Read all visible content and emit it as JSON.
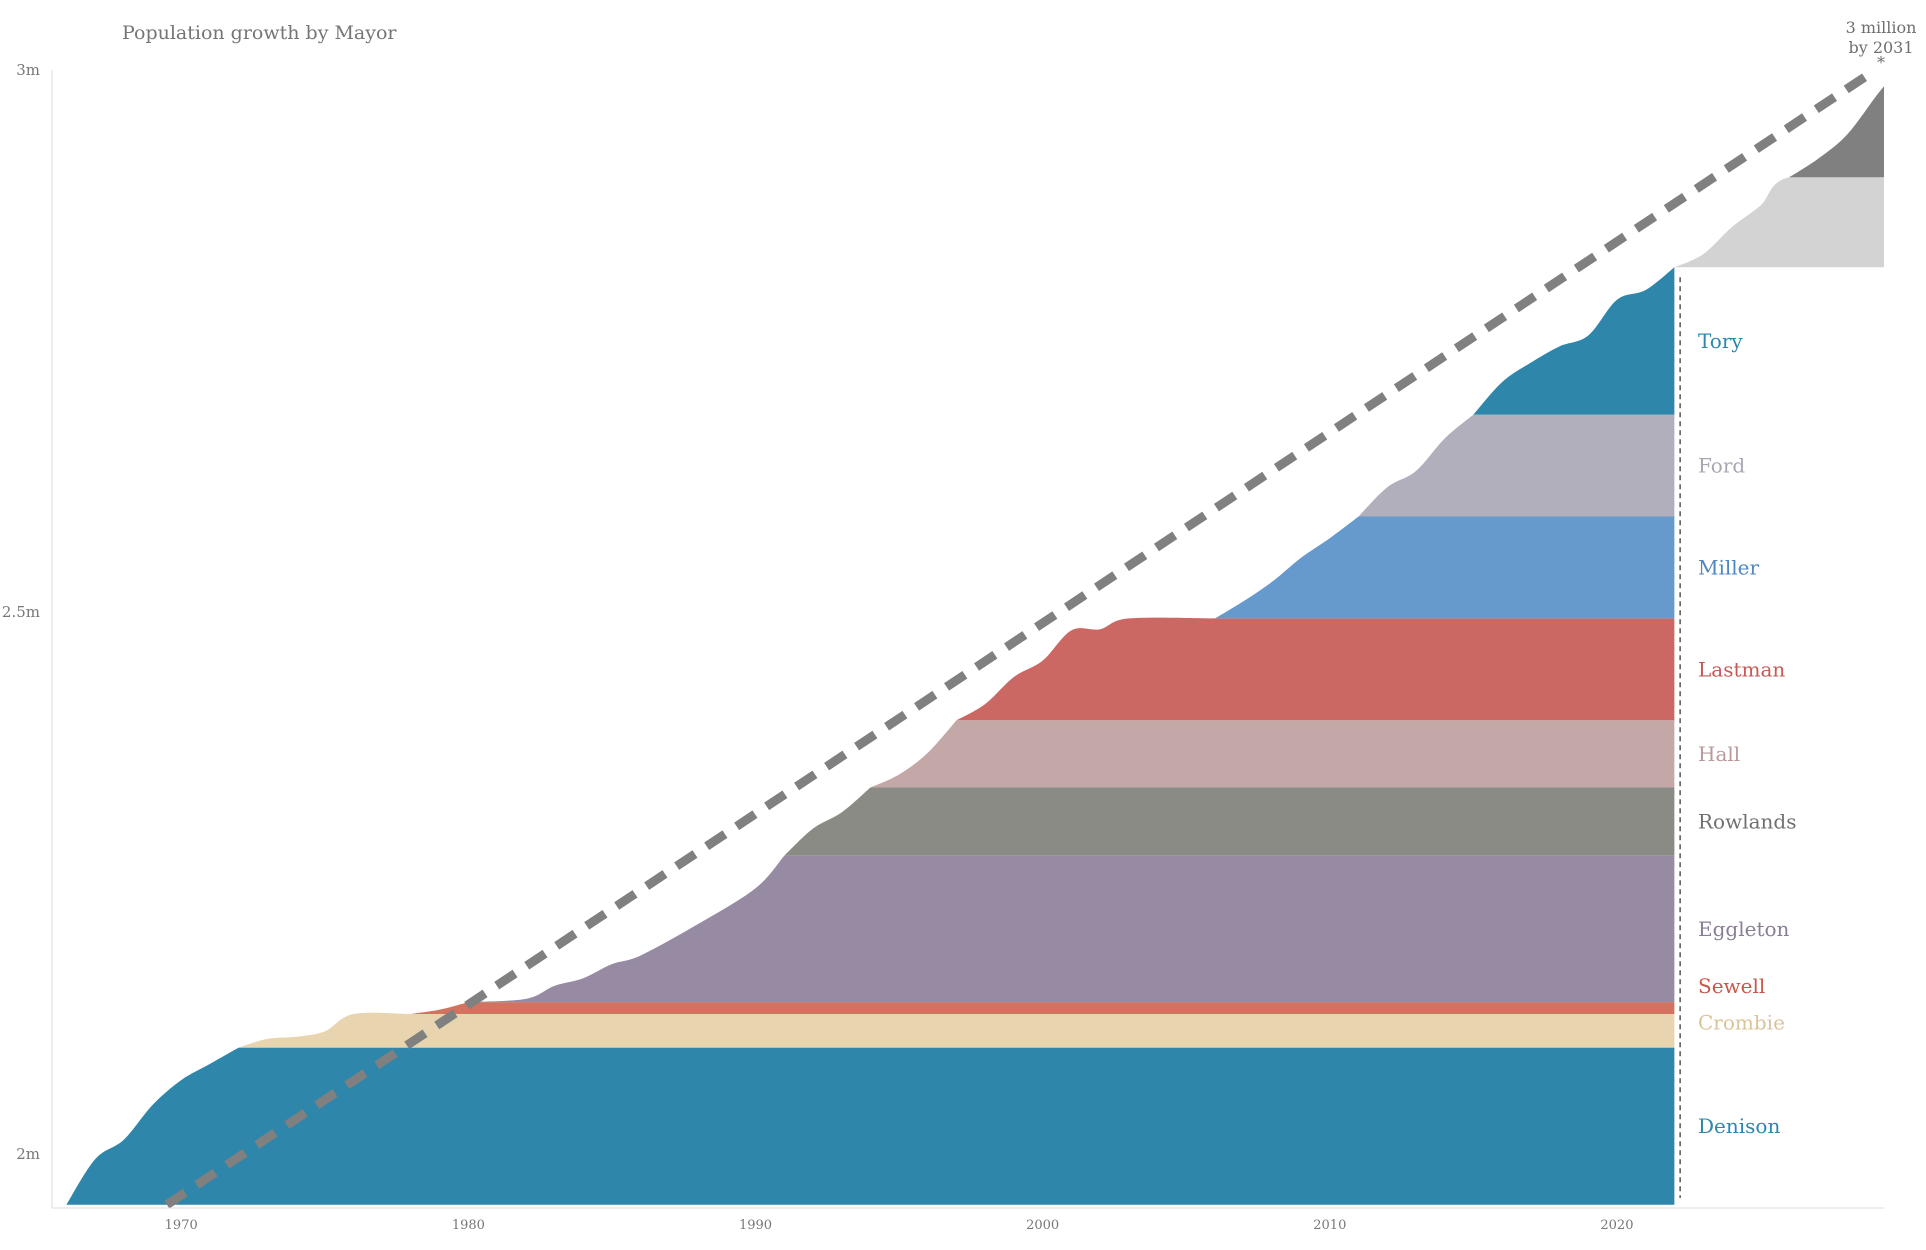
{
  "chart_data": {
    "type": "area",
    "title": "Population growth by Mayor",
    "projection_label": [
      "3 million",
      "by 2031",
      "*"
    ],
    "xlim": [
      1965.5,
      2029.3
    ],
    "ylim": [
      1.95,
      3.0
    ],
    "y_ticks": [
      {
        "value": 2.0,
        "label": "2m"
      },
      {
        "value": 2.5,
        "label": "2.5m"
      },
      {
        "value": 3.0,
        "label": "3m"
      }
    ],
    "x_ticks": [
      1970,
      1980,
      1990,
      2000,
      2010,
      2020
    ],
    "trend_line": {
      "from": [
        1969.5,
        1.953
      ],
      "to": [
        2029.0,
        3.0
      ],
      "color": "#808080",
      "style": "dashed"
    },
    "mayors": [
      {
        "name": "Denison",
        "color": "#2e86ab",
        "start": 1966,
        "end": 1972,
        "base": 1.953,
        "top": 2.098,
        "growth": [
          [
            1966,
            1.953
          ],
          [
            1967,
            1.995
          ],
          [
            1968,
            2.013
          ],
          [
            1969,
            2.045
          ],
          [
            1970,
            2.068
          ],
          [
            1971,
            2.083
          ],
          [
            1972,
            2.098
          ]
        ]
      },
      {
        "name": "Crombie",
        "color": "#e8d5b0",
        "start": 1972,
        "end": 1978,
        "base": 2.098,
        "top": 2.129,
        "growth": [
          [
            1972,
            2.098
          ],
          [
            1973,
            2.106
          ],
          [
            1974,
            2.108
          ],
          [
            1975,
            2.113
          ],
          [
            1976,
            2.129
          ],
          [
            1978,
            2.129
          ]
        ]
      },
      {
        "name": "Sewell",
        "color": "#d2725f",
        "start": 1978,
        "end": 1980,
        "base": 2.129,
        "top": 2.14,
        "growth": [
          [
            1978,
            2.129
          ],
          [
            1979,
            2.133
          ],
          [
            1980,
            2.14
          ]
        ]
      },
      {
        "name": "Eggleton",
        "color": "#978aa3",
        "start": 1980,
        "end": 1991,
        "base": 2.14,
        "top": 2.275,
        "growth": [
          [
            1980,
            2.14
          ],
          [
            1982,
            2.143
          ],
          [
            1983,
            2.155
          ],
          [
            1984,
            2.162
          ],
          [
            1985,
            2.175
          ],
          [
            1986,
            2.183
          ],
          [
            1988,
            2.212
          ],
          [
            1990,
            2.245
          ],
          [
            1991,
            2.275
          ]
        ]
      },
      {
        "name": "Rowlands",
        "color": "#8b8b86",
        "start": 1991,
        "end": 1994,
        "base": 2.275,
        "top": 2.338,
        "growth": [
          [
            1991,
            2.275
          ],
          [
            1992,
            2.3
          ],
          [
            1993,
            2.315
          ],
          [
            1994,
            2.338
          ]
        ]
      },
      {
        "name": "Hall",
        "color": "#c4a8a8",
        "start": 1994,
        "end": 1997,
        "base": 2.338,
        "top": 2.4,
        "growth": [
          [
            1994,
            2.338
          ],
          [
            1995,
            2.35
          ],
          [
            1996,
            2.37
          ],
          [
            1997,
            2.4
          ]
        ]
      },
      {
        "name": "Lastman",
        "color": "#cb6864",
        "start": 1997,
        "end": 2006,
        "base": 2.4,
        "top": 2.494,
        "growth": [
          [
            1997,
            2.4
          ],
          [
            1998,
            2.415
          ],
          [
            1999,
            2.44
          ],
          [
            2000,
            2.455
          ],
          [
            2001,
            2.483
          ],
          [
            2002,
            2.484
          ],
          [
            2003,
            2.494
          ],
          [
            2006,
            2.494
          ]
        ]
      },
      {
        "name": "Miller",
        "color": "#6699cc",
        "start": 2006,
        "end": 2011,
        "base": 2.494,
        "top": 2.588,
        "growth": [
          [
            2006,
            2.494
          ],
          [
            2007,
            2.51
          ],
          [
            2008,
            2.528
          ],
          [
            2009,
            2.55
          ],
          [
            2010,
            2.568
          ],
          [
            2011,
            2.588
          ]
        ]
      },
      {
        "name": "Ford",
        "color": "#b2afbd",
        "start": 2011,
        "end": 2015,
        "base": 2.588,
        "top": 2.682,
        "growth": [
          [
            2011,
            2.588
          ],
          [
            2012,
            2.615
          ],
          [
            2013,
            2.63
          ],
          [
            2014,
            2.66
          ],
          [
            2015,
            2.682
          ]
        ]
      },
      {
        "name": "Tory",
        "color": "#2e86ab",
        "start": 2015,
        "end": 2022,
        "base": 2.682,
        "top": 2.818,
        "growth": [
          [
            2015,
            2.682
          ],
          [
            2016,
            2.712
          ],
          [
            2017,
            2.73
          ],
          [
            2018,
            2.745
          ],
          [
            2019,
            2.755
          ],
          [
            2020,
            2.788
          ],
          [
            2021,
            2.797
          ],
          [
            2022,
            2.818
          ]
        ]
      }
    ],
    "projections": [
      {
        "color": "#d3d3d3",
        "start": 2022,
        "end": 2029.3,
        "base": 2.818,
        "top": 2.901,
        "growth": [
          [
            2022,
            2.818
          ],
          [
            2023,
            2.83
          ],
          [
            2024,
            2.855
          ],
          [
            2025,
            2.875
          ],
          [
            2026,
            2.901
          ],
          [
            2029.3,
            2.901
          ]
        ]
      },
      {
        "color": "#808080",
        "start": 2026,
        "end": 2029.3,
        "base": 2.901,
        "top": 2.985,
        "growth": [
          [
            2026,
            2.901
          ],
          [
            2027,
            2.918
          ],
          [
            2028,
            2.94
          ],
          [
            2029,
            2.975
          ],
          [
            2029.3,
            2.985
          ]
        ]
      }
    ],
    "current_year_marker": 2022.2
  }
}
